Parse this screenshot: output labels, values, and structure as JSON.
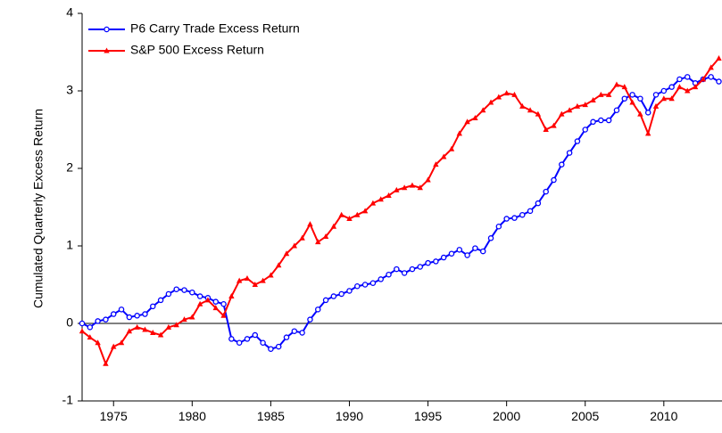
{
  "chart_data": {
    "type": "line",
    "y_label": "Cumulated Quarterly Excess Return",
    "x": [
      1973,
      1973.5,
      1974,
      1974.5,
      1975,
      1975.5,
      1976,
      1976.5,
      1977,
      1977.5,
      1978,
      1978.5,
      1979,
      1979.5,
      1980,
      1980.5,
      1981,
      1981.5,
      1982,
      1982.5,
      1983,
      1983.5,
      1984,
      1984.5,
      1985,
      1985.5,
      1986,
      1986.5,
      1987,
      1987.5,
      1988,
      1988.5,
      1989,
      1989.5,
      1990,
      1990.5,
      1991,
      1991.5,
      1992,
      1992.5,
      1993,
      1993.5,
      1994,
      1994.5,
      1995,
      1995.5,
      1996,
      1996.5,
      1997,
      1997.5,
      1998,
      1998.5,
      1999,
      1999.5,
      2000,
      2000.5,
      2001,
      2001.5,
      2002,
      2002.5,
      2003,
      2003.5,
      2004,
      2004.5,
      2005,
      2005.5,
      2006,
      2006.5,
      2007,
      2007.5,
      2008,
      2008.5,
      2009,
      2009.5,
      2010,
      2010.5,
      2011,
      2011.5,
      2012,
      2012.5,
      2013,
      2013.5
    ],
    "series": [
      {
        "name": "P6 Carry Trade Excess Return",
        "color": "#0000ff",
        "marker": "circle",
        "values": [
          0.0,
          -0.05,
          0.03,
          0.05,
          0.12,
          0.18,
          0.08,
          0.1,
          0.12,
          0.22,
          0.3,
          0.38,
          0.44,
          0.43,
          0.4,
          0.35,
          0.33,
          0.28,
          0.25,
          -0.2,
          -0.25,
          -0.2,
          -0.15,
          -0.25,
          -0.33,
          -0.3,
          -0.18,
          -0.1,
          -0.12,
          0.05,
          0.18,
          0.3,
          0.35,
          0.38,
          0.42,
          0.48,
          0.5,
          0.52,
          0.57,
          0.63,
          0.7,
          0.65,
          0.7,
          0.73,
          0.78,
          0.8,
          0.85,
          0.9,
          0.95,
          0.88,
          0.97,
          0.93,
          1.1,
          1.25,
          1.35,
          1.36,
          1.4,
          1.45,
          1.55,
          1.7,
          1.85,
          2.05,
          2.2,
          2.35,
          2.5,
          2.6,
          2.62,
          2.62,
          2.75,
          2.9,
          2.95,
          2.9,
          2.72,
          2.95,
          3.0,
          3.05,
          3.15,
          3.18,
          3.1,
          3.15,
          3.18,
          3.12
        ]
      },
      {
        "name": "S&P 500 Excess Return",
        "color": "#ff0000",
        "marker": "triangle",
        "values": [
          -0.1,
          -0.18,
          -0.25,
          -0.52,
          -0.3,
          -0.25,
          -0.1,
          -0.05,
          -0.08,
          -0.12,
          -0.15,
          -0.05,
          -0.02,
          0.05,
          0.08,
          0.25,
          0.3,
          0.2,
          0.1,
          0.35,
          0.55,
          0.58,
          0.5,
          0.55,
          0.62,
          0.75,
          0.9,
          1.0,
          1.1,
          1.28,
          1.05,
          1.12,
          1.25,
          1.4,
          1.35,
          1.4,
          1.45,
          1.55,
          1.6,
          1.65,
          1.72,
          1.75,
          1.78,
          1.75,
          1.85,
          2.05,
          2.15,
          2.25,
          2.45,
          2.6,
          2.65,
          2.75,
          2.85,
          2.92,
          2.97,
          2.95,
          2.8,
          2.75,
          2.7,
          2.5,
          2.55,
          2.7,
          2.75,
          2.8,
          2.82,
          2.88,
          2.95,
          2.95,
          3.08,
          3.05,
          2.85,
          2.7,
          2.45,
          2.8,
          2.9,
          2.9,
          3.05,
          3.0,
          3.05,
          3.15,
          3.3,
          3.42
        ]
      }
    ],
    "xlim": [
      1973,
      2013.7
    ],
    "xticks": [
      1975,
      1980,
      1985,
      1990,
      1995,
      2000,
      2005,
      2010
    ],
    "ylim": [
      -1,
      4
    ],
    "yticks": [
      -1,
      0,
      1,
      2,
      3,
      4
    ],
    "legend": "top-left"
  }
}
